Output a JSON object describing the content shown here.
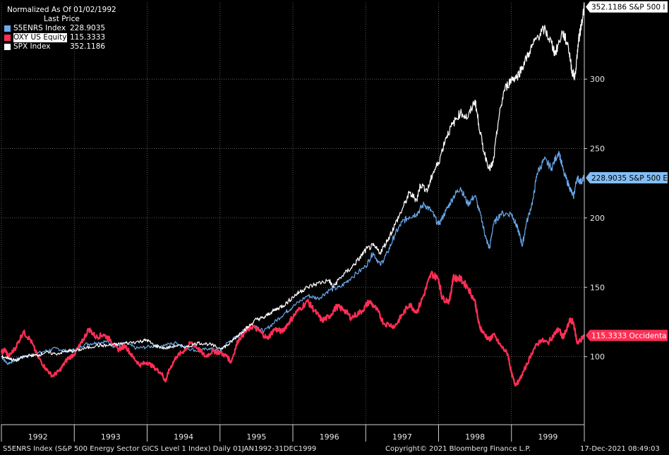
{
  "legend": {
    "title": "Normalized As Of 01/02/1992",
    "subtitle": "Last Price"
  },
  "footer": {
    "left": "S5ENRS Index (S&P 500 Energy Sector GICS Level 1 Index)  Daily 01JAN1992-31DEC1999",
    "center": "Copyright© 2021 Bloomberg Finance L.P.",
    "right": "17-Dec-2021 08:49:03"
  },
  "colors": {
    "background": "#000000",
    "grid": "#6e6e6e",
    "axis": "#cfcfcf"
  },
  "chart_data": {
    "type": "line",
    "x_unit": "year",
    "xlim": [
      1992.0,
      2000.0
    ],
    "ylim": [
      51,
      355
    ],
    "y_ticks": [
      100,
      150,
      200,
      250,
      300
    ],
    "x_tick_labels": [
      "1992",
      "1993",
      "1994",
      "1995",
      "1996",
      "1997",
      "1998",
      "1999"
    ],
    "grid": true,
    "legend_position": "top-left",
    "series": [
      {
        "name": "S5ENRS Index",
        "last_value": "228.9035",
        "tag": "228.9035 S&P 500 E",
        "color": "#6aa9ec",
        "fill_tag": "#84bdf3",
        "tag_text_color": "#000000",
        "stroke_width": 1.2,
        "points": [
          [
            1992.0,
            100
          ],
          [
            1992.08,
            95
          ],
          [
            1992.17,
            97
          ],
          [
            1992.25,
            99
          ],
          [
            1992.4,
            101
          ],
          [
            1992.6,
            104
          ],
          [
            1992.75,
            106
          ],
          [
            1992.9,
            104
          ],
          [
            1993.0,
            105
          ],
          [
            1993.15,
            109
          ],
          [
            1993.3,
            110
          ],
          [
            1993.45,
            111
          ],
          [
            1993.55,
            107
          ],
          [
            1993.7,
            110
          ],
          [
            1993.85,
            106
          ],
          [
            1994.0,
            107
          ],
          [
            1994.2,
            108
          ],
          [
            1994.4,
            110
          ],
          [
            1994.5,
            107
          ],
          [
            1994.7,
            104
          ],
          [
            1994.85,
            106
          ],
          [
            1995.0,
            104
          ],
          [
            1995.1,
            110
          ],
          [
            1995.25,
            115
          ],
          [
            1995.35,
            120
          ],
          [
            1995.5,
            122
          ],
          [
            1995.6,
            118
          ],
          [
            1995.75,
            125
          ],
          [
            1995.9,
            132
          ],
          [
            1996.0,
            136
          ],
          [
            1996.2,
            144
          ],
          [
            1996.35,
            142
          ],
          [
            1996.5,
            148
          ],
          [
            1996.65,
            150
          ],
          [
            1996.8,
            157
          ],
          [
            1997.0,
            165
          ],
          [
            1997.1,
            175
          ],
          [
            1997.2,
            166
          ],
          [
            1997.3,
            175
          ],
          [
            1997.4,
            188
          ],
          [
            1997.5,
            197
          ],
          [
            1997.6,
            201
          ],
          [
            1997.7,
            203
          ],
          [
            1997.8,
            210
          ],
          [
            1997.9,
            205
          ],
          [
            1998.0,
            195
          ],
          [
            1998.1,
            205
          ],
          [
            1998.2,
            215
          ],
          [
            1998.3,
            222
          ],
          [
            1998.4,
            210
          ],
          [
            1998.5,
            216
          ],
          [
            1998.6,
            197
          ],
          [
            1998.65,
            185
          ],
          [
            1998.7,
            178
          ],
          [
            1998.75,
            195
          ],
          [
            1998.85,
            203
          ],
          [
            1999.0,
            203
          ],
          [
            1999.05,
            197
          ],
          [
            1999.1,
            190
          ],
          [
            1999.15,
            180
          ],
          [
            1999.2,
            195
          ],
          [
            1999.3,
            214
          ],
          [
            1999.35,
            232
          ],
          [
            1999.45,
            242
          ],
          [
            1999.55,
            236
          ],
          [
            1999.65,
            248
          ],
          [
            1999.72,
            232
          ],
          [
            1999.8,
            222
          ],
          [
            1999.85,
            215
          ],
          [
            1999.9,
            229
          ],
          [
            1999.95,
            226
          ],
          [
            2000.0,
            228.9
          ]
        ]
      },
      {
        "name": "OXY US Equity",
        "last_value": "115.3333",
        "tag": "115.3333 Occidenta",
        "color": "#ff2e55",
        "fill_tag": "#ff2e55",
        "tag_text_color": "#ffffff",
        "stroke_width": 2.2,
        "points": [
          [
            1992.0,
            103
          ],
          [
            1992.05,
            105
          ],
          [
            1992.1,
            100
          ],
          [
            1992.2,
            107
          ],
          [
            1992.3,
            118
          ],
          [
            1992.4,
            112
          ],
          [
            1992.5,
            100
          ],
          [
            1992.6,
            92
          ],
          [
            1992.7,
            86
          ],
          [
            1992.8,
            90
          ],
          [
            1992.9,
            98
          ],
          [
            1993.0,
            102
          ],
          [
            1993.1,
            110
          ],
          [
            1993.2,
            120
          ],
          [
            1993.3,
            114
          ],
          [
            1993.4,
            116
          ],
          [
            1993.5,
            112
          ],
          [
            1993.6,
            105
          ],
          [
            1993.7,
            108
          ],
          [
            1993.8,
            100
          ],
          [
            1993.9,
            94
          ],
          [
            1994.0,
            96
          ],
          [
            1994.1,
            92
          ],
          [
            1994.2,
            88
          ],
          [
            1994.25,
            82
          ],
          [
            1994.3,
            90
          ],
          [
            1994.4,
            100
          ],
          [
            1994.5,
            104
          ],
          [
            1994.6,
            110
          ],
          [
            1994.7,
            106
          ],
          [
            1994.8,
            100
          ],
          [
            1994.9,
            104
          ],
          [
            1995.0,
            103
          ],
          [
            1995.1,
            100
          ],
          [
            1995.15,
            96
          ],
          [
            1995.25,
            112
          ],
          [
            1995.35,
            118
          ],
          [
            1995.45,
            122
          ],
          [
            1995.55,
            118
          ],
          [
            1995.65,
            113
          ],
          [
            1995.75,
            120
          ],
          [
            1995.85,
            118
          ],
          [
            1995.95,
            125
          ],
          [
            1996.05,
            132
          ],
          [
            1996.2,
            140
          ],
          [
            1996.3,
            133
          ],
          [
            1996.4,
            126
          ],
          [
            1996.5,
            129
          ],
          [
            1996.6,
            136
          ],
          [
            1996.7,
            134
          ],
          [
            1996.8,
            128
          ],
          [
            1996.95,
            133
          ],
          [
            1997.05,
            140
          ],
          [
            1997.15,
            134
          ],
          [
            1997.25,
            124
          ],
          [
            1997.4,
            122
          ],
          [
            1997.5,
            130
          ],
          [
            1997.6,
            138
          ],
          [
            1997.7,
            132
          ],
          [
            1997.8,
            145
          ],
          [
            1997.9,
            160
          ],
          [
            1998.0,
            156
          ],
          [
            1998.05,
            142
          ],
          [
            1998.15,
            140
          ],
          [
            1998.2,
            157
          ],
          [
            1998.3,
            156
          ],
          [
            1998.4,
            150
          ],
          [
            1998.5,
            140
          ],
          [
            1998.55,
            124
          ],
          [
            1998.6,
            118
          ],
          [
            1998.7,
            112
          ],
          [
            1998.75,
            116
          ],
          [
            1998.85,
            108
          ],
          [
            1998.95,
            102
          ],
          [
            1999.0,
            88
          ],
          [
            1999.05,
            80
          ],
          [
            1999.1,
            82
          ],
          [
            1999.2,
            93
          ],
          [
            1999.3,
            105
          ],
          [
            1999.4,
            112
          ],
          [
            1999.5,
            110
          ],
          [
            1999.6,
            117
          ],
          [
            1999.65,
            120
          ],
          [
            1999.7,
            114
          ],
          [
            1999.75,
            118
          ],
          [
            1999.8,
            126
          ],
          [
            1999.85,
            125
          ],
          [
            1999.9,
            110
          ],
          [
            1999.95,
            112
          ],
          [
            2000.0,
            115.3
          ]
        ]
      },
      {
        "name": "SPX Index",
        "last_value": "352.1186",
        "tag": "352.1186 S&P 500 I",
        "color": "#ffffff",
        "fill_tag": "#ffffff",
        "tag_text_color": "#000000",
        "stroke_width": 1.2,
        "points": [
          [
            1992.0,
            100
          ],
          [
            1992.1,
            99
          ],
          [
            1992.2,
            97
          ],
          [
            1992.3,
            100
          ],
          [
            1992.4,
            101
          ],
          [
            1992.5,
            101
          ],
          [
            1992.6,
            103
          ],
          [
            1992.75,
            102
          ],
          [
            1992.9,
            104
          ],
          [
            1993.0,
            104
          ],
          [
            1993.15,
            106
          ],
          [
            1993.3,
            108
          ],
          [
            1993.45,
            108
          ],
          [
            1993.6,
            109
          ],
          [
            1993.75,
            110
          ],
          [
            1993.9,
            111
          ],
          [
            1994.0,
            112
          ],
          [
            1994.1,
            108
          ],
          [
            1994.25,
            106
          ],
          [
            1994.4,
            108
          ],
          [
            1994.55,
            107
          ],
          [
            1994.7,
            110
          ],
          [
            1994.85,
            109
          ],
          [
            1995.0,
            106
          ],
          [
            1995.1,
            108
          ],
          [
            1995.2,
            113
          ],
          [
            1995.3,
            118
          ],
          [
            1995.4,
            122
          ],
          [
            1995.5,
            127
          ],
          [
            1995.6,
            128
          ],
          [
            1995.7,
            132
          ],
          [
            1995.8,
            135
          ],
          [
            1995.9,
            138
          ],
          [
            1996.0,
            143
          ],
          [
            1996.1,
            147
          ],
          [
            1996.2,
            150
          ],
          [
            1996.35,
            153
          ],
          [
            1996.5,
            155
          ],
          [
            1996.55,
            150
          ],
          [
            1996.65,
            157
          ],
          [
            1996.8,
            164
          ],
          [
            1996.9,
            170
          ],
          [
            1997.0,
            177
          ],
          [
            1997.1,
            180
          ],
          [
            1997.2,
            175
          ],
          [
            1997.3,
            184
          ],
          [
            1997.4,
            195
          ],
          [
            1997.5,
            206
          ],
          [
            1997.6,
            218
          ],
          [
            1997.7,
            213
          ],
          [
            1997.75,
            224
          ],
          [
            1997.85,
            220
          ],
          [
            1997.92,
            232
          ],
          [
            1998.0,
            240
          ],
          [
            1998.1,
            258
          ],
          [
            1998.2,
            268
          ],
          [
            1998.3,
            276
          ],
          [
            1998.4,
            272
          ],
          [
            1998.5,
            285
          ],
          [
            1998.55,
            268
          ],
          [
            1998.62,
            248
          ],
          [
            1998.7,
            235
          ],
          [
            1998.75,
            240
          ],
          [
            1998.82,
            270
          ],
          [
            1998.9,
            292
          ],
          [
            1999.0,
            300
          ],
          [
            1999.08,
            302
          ],
          [
            1999.15,
            309
          ],
          [
            1999.25,
            320
          ],
          [
            1999.35,
            330
          ],
          [
            1999.45,
            336
          ],
          [
            1999.55,
            326
          ],
          [
            1999.6,
            318
          ],
          [
            1999.7,
            334
          ],
          [
            1999.78,
            324
          ],
          [
            1999.83,
            306
          ],
          [
            1999.87,
            301
          ],
          [
            1999.92,
            327
          ],
          [
            1999.96,
            340
          ],
          [
            2000.0,
            352.1
          ]
        ]
      }
    ]
  }
}
